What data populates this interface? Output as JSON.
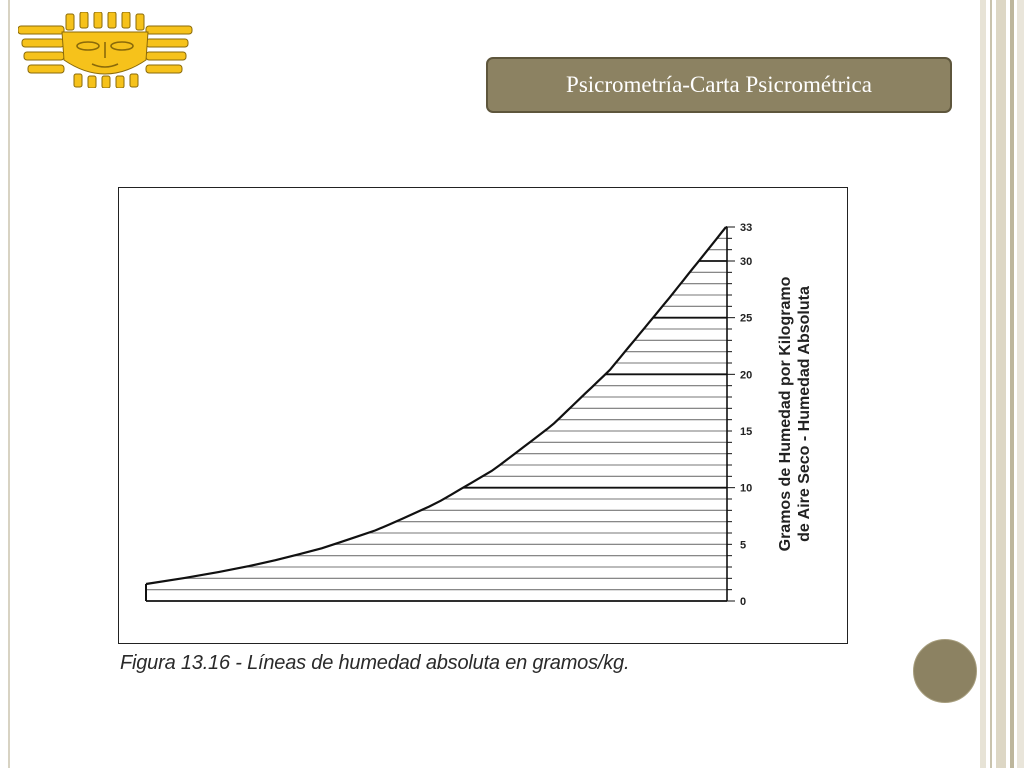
{
  "slide": {
    "title": "Psicrometría-Carta Psicrométrica",
    "caption": "Figura 13.16 - Líneas de humedad absoluta en gramos/kg."
  },
  "colors": {
    "accent": "#8c8262",
    "logo": "#f6c21b",
    "line": "#222222"
  },
  "icons": {
    "logo": "sun-face-icon",
    "nav": "circle-button"
  },
  "chart_data": {
    "type": "line",
    "title": "",
    "ylabel": "Gramos de Humedad por Kilogramo de Aire Seco - Humedad Absoluta",
    "ylabel_lines": [
      "Gramos de Humedad por Kilogramo",
      "de Aire Seco - Humedad Absoluta"
    ],
    "ytick_labels": [
      "0",
      "5",
      "10",
      "15",
      "20",
      "25",
      "30",
      "33"
    ],
    "yticks": [
      0,
      5,
      10,
      15,
      20,
      25,
      30,
      33
    ],
    "ylim": [
      0,
      33
    ],
    "bold_lines": [
      0,
      10,
      20,
      25,
      30,
      33
    ],
    "line_step": 1,
    "grid": false,
    "series": [
      {
        "x": [
          0,
          0.1,
          0.2,
          0.3,
          0.4,
          0.5,
          0.6,
          0.7,
          0.8,
          0.9,
          1.0
        ],
        "values": [
          1.5,
          2.3,
          3.3,
          4.6,
          6.3,
          8.6,
          11.6,
          15.5,
          20.4,
          26.6,
          33
        ]
      }
    ]
  }
}
